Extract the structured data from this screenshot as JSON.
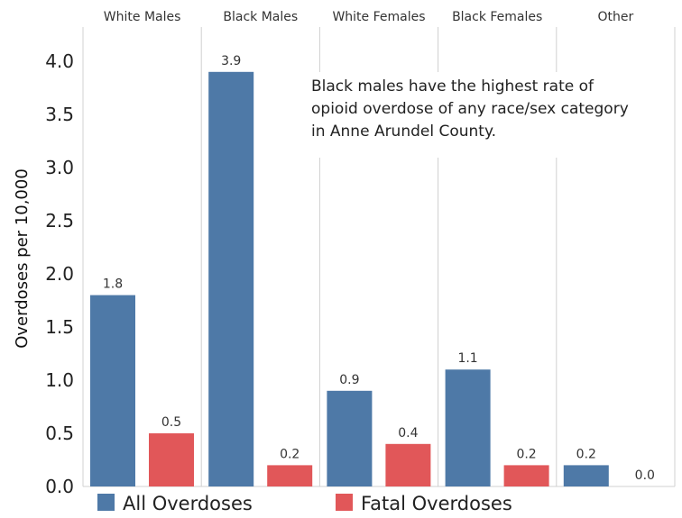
{
  "chart_data": {
    "type": "bar",
    "categories": [
      "White Males",
      "Black Males",
      "White Females",
      "Black Females",
      "Other"
    ],
    "series": [
      {
        "name": "All Overdoses",
        "values": [
          1.8,
          3.9,
          0.9,
          1.1,
          0.2
        ],
        "labels": [
          "1.8",
          "3.9",
          "0.9",
          "1.1",
          "0.2"
        ]
      },
      {
        "name": "Fatal Overdoses",
        "values": [
          0.5,
          0.2,
          0.4,
          0.2,
          0.0
        ],
        "labels": [
          "0.5",
          "0.2",
          "0.4",
          "0.2",
          "0.0"
        ]
      }
    ],
    "ylabel": "Overdoses per 10,000",
    "ylim": [
      0,
      4.0
    ],
    "yticks": [
      "0.0",
      "0.5",
      "1.0",
      "1.5",
      "2.0",
      "2.5",
      "3.0",
      "3.5",
      "4.0"
    ],
    "annotation": [
      "Black males have the highest rate of",
      "opioid overdose of any race/sex category",
      "in Anne Arundel County."
    ],
    "legend_position": "bottom",
    "grid": false,
    "colors": {
      "All Overdoses": "#4e79a7",
      "Fatal Overdoses": "#e15759"
    }
  }
}
